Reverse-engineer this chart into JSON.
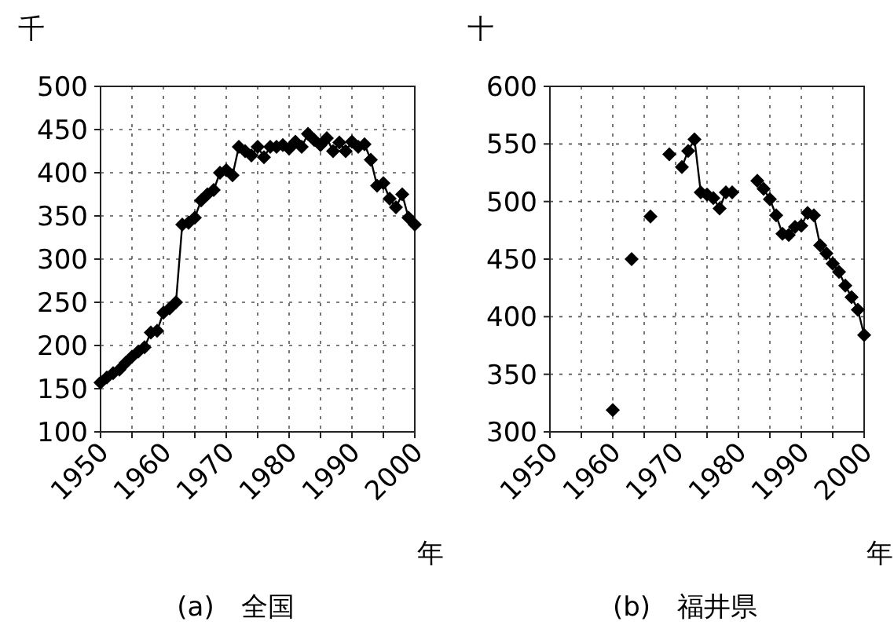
{
  "chart_data": [
    {
      "type": "line",
      "title": "(a)　全国",
      "ylabel": "千",
      "xlabel": "年",
      "x": [
        1950,
        1951,
        1952,
        1953,
        1954,
        1955,
        1956,
        1957,
        1958,
        1959,
        1960,
        1961,
        1962,
        1963,
        1964,
        1965,
        1966,
        1967,
        1968,
        1969,
        1970,
        1971,
        1972,
        1973,
        1974,
        1975,
        1976,
        1977,
        1978,
        1979,
        1980,
        1981,
        1982,
        1983,
        1984,
        1985,
        1986,
        1987,
        1988,
        1989,
        1990,
        1991,
        1992,
        1993,
        1994,
        1995,
        1996,
        1997,
        1998,
        1999,
        2000
      ],
      "series": [
        {
          "color": "#000000",
          "values": [
            157,
            163,
            168,
            172,
            180,
            187,
            193,
            198,
            215,
            217,
            238,
            243,
            250,
            340,
            342,
            348,
            368,
            375,
            380,
            400,
            403,
            397,
            430,
            425,
            420,
            430,
            418,
            430,
            430,
            432,
            428,
            436,
            430,
            445,
            438,
            432,
            440,
            425,
            435,
            425,
            436,
            430,
            433,
            415,
            385,
            388,
            370,
            360,
            375,
            348,
            340
          ]
        }
      ],
      "xlim": [
        1950,
        2000
      ],
      "xticks": [
        1950,
        {
          "value": 1955,
          "label": null
        },
        1960,
        {
          "value": 1965,
          "label": null
        },
        1970,
        {
          "value": 1975,
          "label": null
        },
        1980,
        {
          "value": 1985,
          "label": null
        },
        1990,
        {
          "value": 1995,
          "label": null
        },
        2000
      ],
      "ylim": [
        100,
        500
      ],
      "yticks": [
        100,
        150,
        200,
        250,
        300,
        350,
        400,
        450,
        500
      ],
      "grid": true,
      "marker": "diamond",
      "line_style": "solid"
    },
    {
      "type": "line",
      "title": "(b)　福井県",
      "ylabel": "十",
      "xlabel": "年",
      "series": [
        {
          "color": "#000000",
          "x": [
            1960
          ],
          "values": [
            319
          ]
        },
        {
          "color": "#000000",
          "x": [
            1963
          ],
          "values": [
            450
          ]
        },
        {
          "color": "#000000",
          "x": [
            1966
          ],
          "values": [
            487
          ]
        },
        {
          "color": "#000000",
          "x": [
            1969
          ],
          "values": [
            541
          ]
        },
        {
          "color": "#000000",
          "x": [
            1971,
            1972,
            1973,
            1974,
            1975,
            1976,
            1977,
            1978,
            1979
          ],
          "values": [
            530,
            544,
            554,
            508,
            506,
            503,
            494,
            508,
            508
          ]
        },
        {
          "color": "#000000",
          "x": [
            1983,
            1984,
            1985,
            1986,
            1987,
            1988,
            1989,
            1990,
            1991,
            1992,
            1993,
            1994,
            1995,
            1996,
            1997,
            1998,
            1999,
            2000
          ],
          "values": [
            518,
            511,
            502,
            488,
            472,
            471,
            478,
            479,
            490,
            488,
            462,
            455,
            446,
            439,
            427,
            417,
            406,
            384
          ]
        }
      ],
      "xlim": [
        1950,
        2000
      ],
      "xticks": [
        1950,
        {
          "value": 1955,
          "label": null
        },
        1960,
        {
          "value": 1965,
          "label": null
        },
        1970,
        {
          "value": 1975,
          "label": null
        },
        1980,
        {
          "value": 1985,
          "label": null
        },
        1990,
        {
          "value": 1995,
          "label": null
        },
        2000
      ],
      "ylim": [
        300,
        600
      ],
      "yticks": [
        300,
        350,
        400,
        450,
        500,
        550,
        600
      ],
      "grid": true,
      "marker": "diamond",
      "line_style": "solid"
    }
  ]
}
